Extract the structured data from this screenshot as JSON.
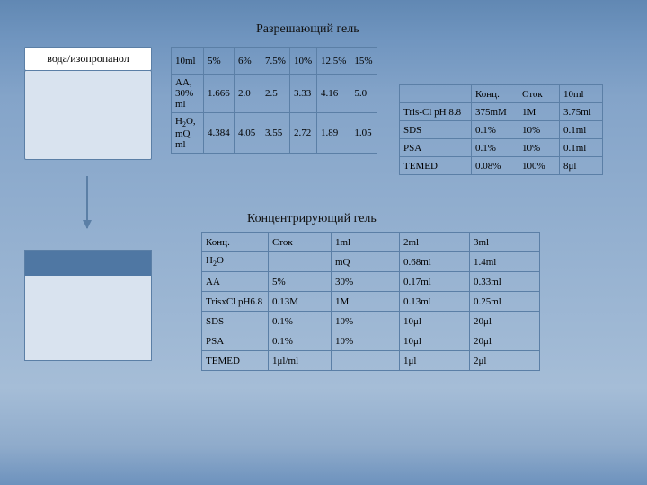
{
  "titles": {
    "resolving": "Разрешающий гель",
    "stacking": "Концентрирующий гель"
  },
  "labelBox": "вода/изопропанол",
  "colors": {
    "bg_top": "#6188b3",
    "bg_bottom": "#6d92bd",
    "border": "#5b7fa6",
    "box_fill": "#d9e3ef",
    "strip": "#4f77a3",
    "white": "#ffffff"
  },
  "table1": {
    "headers": [
      "10ml",
      "5%",
      "6%",
      "7.5%",
      "10%",
      "12.5%",
      "15%"
    ],
    "rows": [
      [
        "AA, 30% ml",
        "1.666",
        "2.0",
        "2.5",
        "3.33",
        "4.16",
        "5.0"
      ],
      [
        "H₂O, mQ ml",
        "4.384",
        "4.05",
        "3.55",
        "2.72",
        "1.89",
        "1.05"
      ]
    ],
    "col_widths": [
      "36px",
      "34px",
      "30px",
      "32px",
      "30px",
      "32px",
      "30px"
    ]
  },
  "table2": {
    "headers": [
      "",
      "Конц.",
      "Сток",
      "10ml"
    ],
    "rows": [
      [
        "Tris-Cl pH 8.8",
        "375mM",
        "1M",
        "3.75ml"
      ],
      [
        "SDS",
        "0.1%",
        "10%",
        "0.1ml"
      ],
      [
        "PSA",
        "0.1%",
        "10%",
        "0.1ml"
      ],
      [
        "TEMED",
        "0.08%",
        "100%",
        "8μl"
      ]
    ],
    "col_widths": [
      "80px",
      "52px",
      "46px",
      "48px"
    ]
  },
  "table3": {
    "headers": [
      "Конц.",
      "Сток",
      "1ml",
      "2ml",
      "3ml"
    ],
    "rows": [
      [
        "H₂O",
        "",
        "mQ",
        "0.68ml",
        "1.4ml"
      ],
      [
        "AA",
        "5%",
        "30%",
        "0.17ml",
        "0.33ml"
      ],
      [
        "TrisxCl pH6.8",
        "0.13M",
        "1M",
        "0.13ml",
        "0.25ml"
      ],
      [
        "SDS",
        "0.1%",
        "10%",
        "10μl",
        "20μl"
      ],
      [
        "PSA",
        "0.1%",
        "10%",
        "10μl",
        "20μl"
      ],
      [
        "TEMED",
        "1μl/ml",
        "",
        "1μl",
        "2μl"
      ]
    ],
    "col_widths": [
      "74px",
      "70px",
      "76px",
      "78px",
      "78px"
    ]
  }
}
